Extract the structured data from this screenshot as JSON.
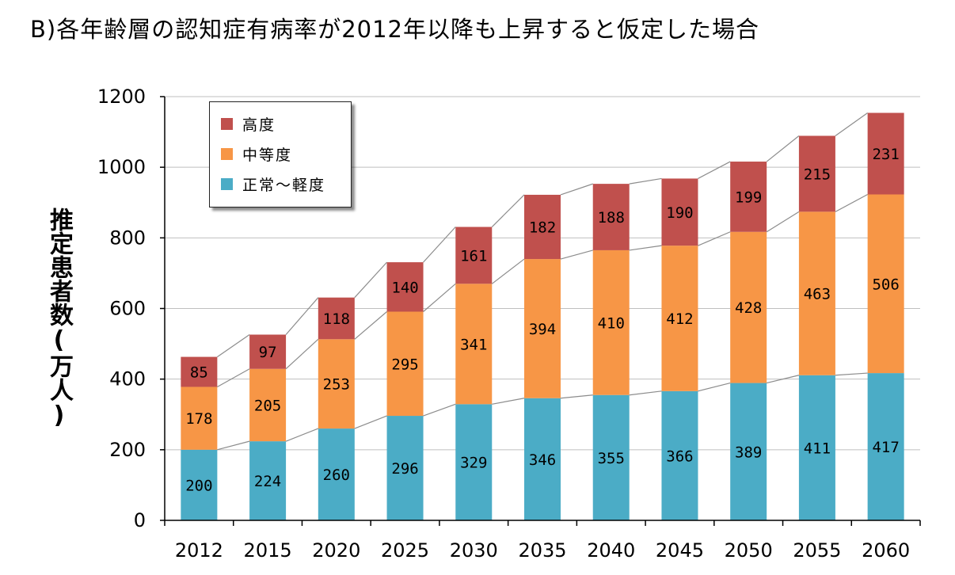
{
  "title": "B)各年齢層の認知症有病率が2012年以降も上昇すると仮定した場合",
  "colors": {
    "severe": "#C0504D",
    "moderate": "#F79646",
    "mild": "#4BACC6",
    "connector": "#8C8C8C",
    "grid": "#BFBFBF"
  },
  "chart_data": {
    "type": "bar",
    "stacked": true,
    "title": "B)各年齢層の認知症有病率が2012年以降も上昇すると仮定した場合",
    "xlabel": "",
    "ylabel": "推定患者数(万人)",
    "ylim": [
      0,
      1200
    ],
    "yticks": [
      0,
      200,
      400,
      600,
      800,
      1000,
      1200
    ],
    "grid": true,
    "legend_position": "top-left",
    "categories": [
      "2012",
      "2015",
      "2020",
      "2025",
      "2030",
      "2035",
      "2040",
      "2045",
      "2050",
      "2055",
      "2060"
    ],
    "series": [
      {
        "name": "正常〜軽度",
        "values": [
          200,
          224,
          260,
          296,
          329,
          346,
          355,
          366,
          389,
          411,
          417
        ]
      },
      {
        "name": "中等度",
        "values": [
          178,
          205,
          253,
          295,
          341,
          394,
          410,
          412,
          428,
          463,
          506
        ]
      },
      {
        "name": "高度",
        "values": [
          85,
          97,
          118,
          140,
          161,
          182,
          188,
          190,
          199,
          215,
          231
        ]
      }
    ]
  }
}
